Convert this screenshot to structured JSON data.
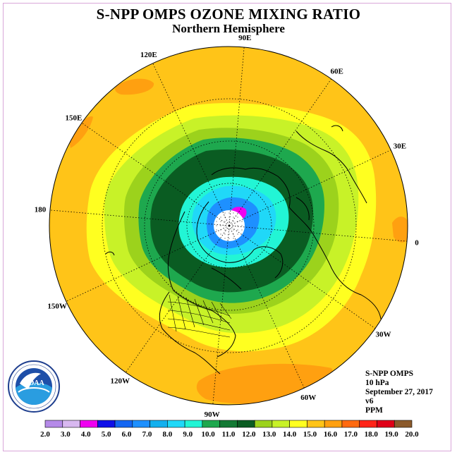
{
  "title": "S-NPP OMPS OZONE MIXING RATIO",
  "subtitle": "Northern Hemisphere",
  "longitude_labels": [
    "90E",
    "60E",
    "30E",
    "0",
    "30W",
    "60W",
    "90W",
    "120W",
    "150W",
    "180",
    "150E",
    "120E"
  ],
  "info": {
    "instrument": "S-NPP OMPS",
    "pressure": "10 hPa",
    "date": "September 27, 2017",
    "version": "v6",
    "units": "PPM"
  },
  "logo": {
    "name": "noaa-logo",
    "text": "NOAA"
  },
  "colorbar": {
    "tick_labels": [
      "2.0",
      "3.0",
      "4.0",
      "5.0",
      "6.0",
      "7.0",
      "8.0",
      "9.0",
      "10.0",
      "11.0",
      "12.0",
      "13.0",
      "14.0",
      "15.0",
      "16.0",
      "17.0",
      "18.0",
      "19.0",
      "20.0"
    ],
    "colors": [
      "#b58ae8",
      "#d8b8f0",
      "#f000f0",
      "#1010e8",
      "#1466f2",
      "#1e90ff",
      "#12b0ee",
      "#20d8f8",
      "#22f5d5",
      "#1ea84e",
      "#137a34",
      "#0a5c22",
      "#9cd21c",
      "#c8f228",
      "#ffff20",
      "#ffc418",
      "#ffa010",
      "#ff6a10",
      "#ff2418",
      "#e00018",
      "#8b5a2b"
    ]
  },
  "map_colors": {
    "bg": "#ffc418",
    "orange": "#ffa010",
    "yellow": "#ffff20",
    "lime": "#c8f228",
    "green": "#9cd21c",
    "forest": "#1ea84e",
    "dark": "#0a5c22",
    "cyan": "#22f5d5",
    "sky": "#20d8f8",
    "blue": "#1e90ff",
    "magenta": "#f000f0"
  }
}
